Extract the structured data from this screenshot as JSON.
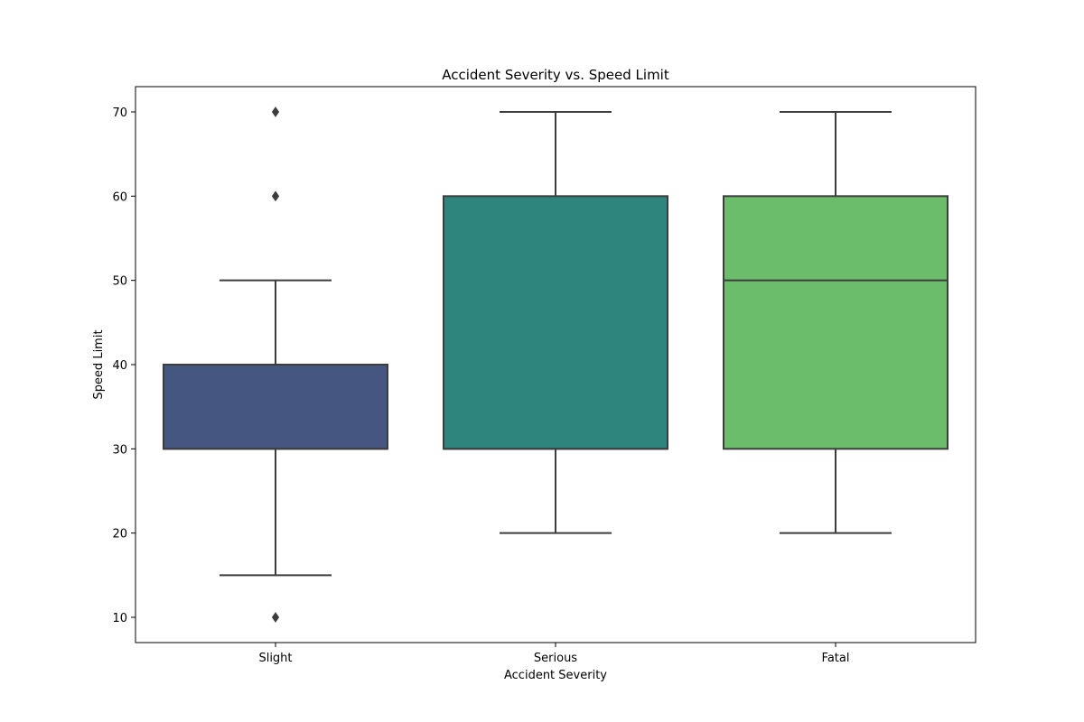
{
  "chart_data": {
    "type": "boxplot",
    "title": "Accident Severity vs. Speed Limit",
    "xlabel": "Accident Severity",
    "ylabel": "Speed Limit",
    "categories": [
      "Slight",
      "Serious",
      "Fatal"
    ],
    "ylim": [
      7,
      73
    ],
    "yticks": [
      10,
      20,
      30,
      40,
      50,
      60,
      70
    ],
    "grid": false,
    "boxes": [
      {
        "category": "Slight",
        "whisker_low": 15,
        "q1": 30,
        "median": 30,
        "q3": 40,
        "whisker_high": 50,
        "outliers": [
          10,
          60,
          70
        ],
        "color": "#455681"
      },
      {
        "category": "Serious",
        "whisker_low": 20,
        "q1": 30,
        "median": 30,
        "q3": 60,
        "whisker_high": 70,
        "outliers": [],
        "color": "#2e857e"
      },
      {
        "category": "Fatal",
        "whisker_low": 20,
        "q1": 30,
        "median": 50,
        "q3": 60,
        "whisker_high": 70,
        "outliers": [],
        "color": "#6bbc6b"
      }
    ],
    "line_color": "#3d3d3d"
  }
}
